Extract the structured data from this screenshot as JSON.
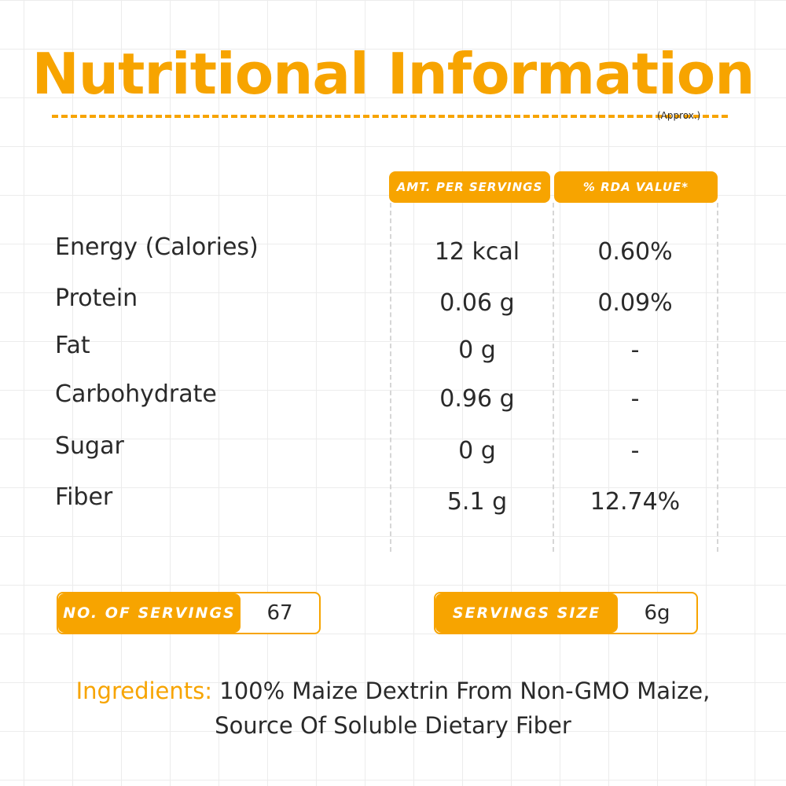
{
  "header": {
    "title": "Nutritional Information",
    "note": "(Approx.)"
  },
  "table": {
    "headers": [
      "AMT. PER SERVINGS",
      "% RDA VALUE*"
    ],
    "rows": [
      [
        "Energy (Calories)",
        "12 kcal",
        "0.60%"
      ],
      [
        "Protein",
        "0.06 g",
        "0.09%"
      ],
      [
        "Fat",
        "0 g",
        "-"
      ],
      [
        "Carbohydrate",
        "0.96 g",
        "-"
      ],
      [
        "Sugar",
        "0 g",
        "-"
      ],
      [
        "Fiber",
        "5.1 g",
        "12.74%"
      ]
    ]
  },
  "servings": {
    "count_label": "NO. OF SERVINGS",
    "count_value": "67",
    "size_label": "SERVINGS SIZE",
    "size_value": "6g"
  },
  "ingredients": {
    "label": "Ingredients:",
    "lines": [
      "100% Maize Dextrin From Non-GMO Maize,",
      "Source Of Soluble Dietary Fiber"
    ]
  }
}
